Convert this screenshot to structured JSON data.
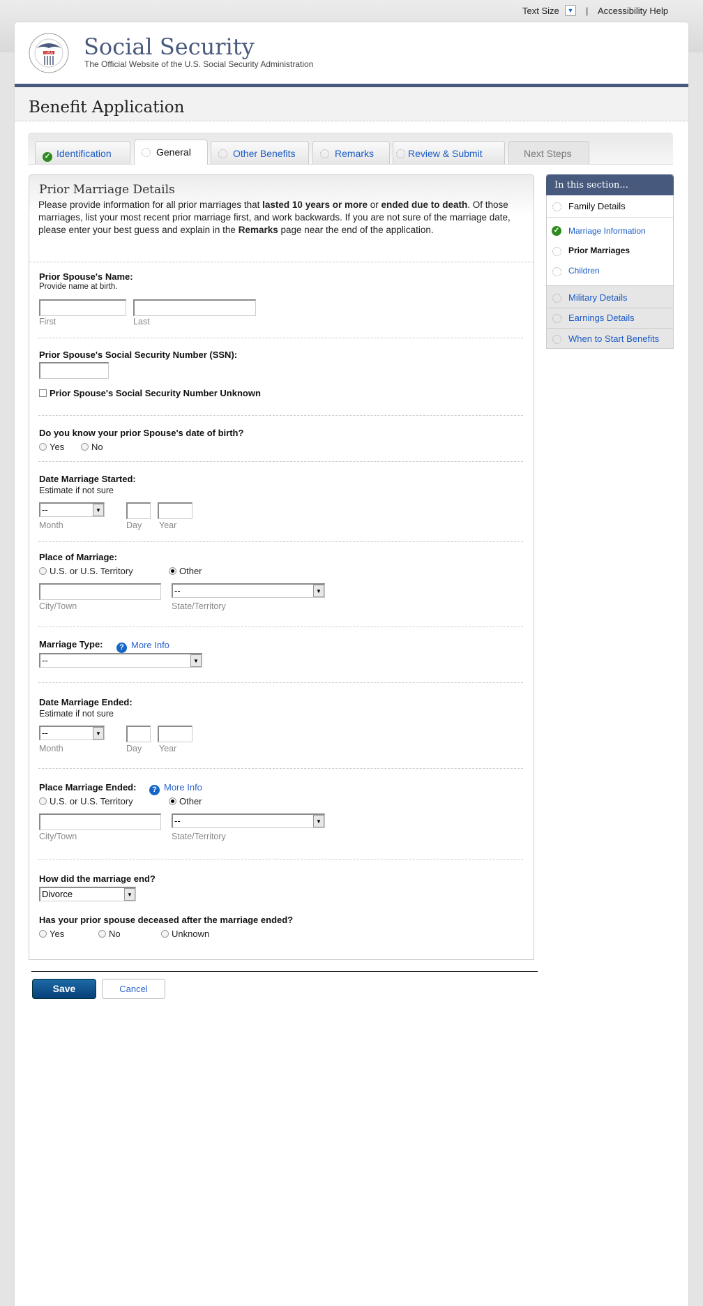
{
  "utility": {
    "text_size": "Text Size",
    "separator": "|",
    "accessibility": "Accessibility Help"
  },
  "header": {
    "title": "Social Security",
    "subtitle": "The Official Website of the U.S. Social Security Administration",
    "logo_text": "SOCIAL SECURITY ADMINISTRATION USA"
  },
  "page_title": "Benefit Application",
  "tabs": [
    {
      "label": "Identification",
      "state": "complete"
    },
    {
      "label": "General",
      "state": "active"
    },
    {
      "label": "Other Benefits",
      "state": "incomplete"
    },
    {
      "label": "Remarks",
      "state": "incomplete"
    },
    {
      "label": "Review & Submit",
      "state": "incomplete"
    },
    {
      "label": "Next Steps",
      "state": "disabled"
    }
  ],
  "panel": {
    "heading": "Prior Marriage Details",
    "intro": {
      "p1": "Please provide information for all prior marriages that ",
      "b1": "lasted 10 years or more",
      "p2": " or ",
      "b2": "ended due to death",
      "p3": ". Of those marriages, list your most recent prior marriage first, and work backwards. If you are not sure of the marriage date, please enter your best guess and explain in the ",
      "b3": "Remarks",
      "p4": " page near the end of the application."
    }
  },
  "form": {
    "name": {
      "label": "Prior Spouse's Name:",
      "sub": "Provide name at birth.",
      "first": "First",
      "last": "Last",
      "first_value": "",
      "last_value": ""
    },
    "ssn": {
      "label": "Prior Spouse's Social Security Number (SSN):",
      "value": "",
      "unknown": "Prior Spouse's Social Security Number Unknown"
    },
    "dob": {
      "label": "Do you know your prior Spouse's date of birth?",
      "yes": "Yes",
      "no": "No"
    },
    "start": {
      "label": "Date Marriage Started:",
      "sub": "Estimate if not sure",
      "month_value": "--",
      "month": "Month",
      "day": "Day",
      "year": "Year"
    },
    "place": {
      "label": "Place of Marriage:",
      "us": "U.S. or U.S. Territory",
      "other": "Other",
      "selected": "Other",
      "city": "City/Town",
      "state": "State/Territory",
      "state_value": "--"
    },
    "type": {
      "label": "Marriage Type:",
      "more_info": "More Info",
      "value": "--"
    },
    "end": {
      "label": "Date Marriage Ended:",
      "sub": "Estimate if not sure",
      "month_value": "--",
      "month": "Month",
      "day": "Day",
      "year": "Year"
    },
    "place_end": {
      "label": "Place Marriage Ended:",
      "more_info": "More Info",
      "us": "U.S. or U.S. Territory",
      "other": "Other",
      "selected": "Other",
      "city": "City/Town",
      "state": "State/Territory",
      "state_value": "--"
    },
    "how": {
      "label": "How did the marriage end?",
      "value": "Divorce"
    },
    "deceased": {
      "label": "Has your prior spouse deceased after the marriage ended?",
      "yes": "Yes",
      "no": "No",
      "unknown": "Unknown"
    }
  },
  "sidebar": {
    "title": "In this section...",
    "items": [
      {
        "label": "Family Details",
        "state": "incomplete"
      },
      {
        "label": "Marriage Information",
        "state": "complete"
      },
      {
        "label": "Prior Marriages",
        "state": "current"
      },
      {
        "label": "Children",
        "state": "incomplete"
      },
      {
        "label": "Military Details",
        "state": "incomplete"
      },
      {
        "label": "Earnings Details",
        "state": "incomplete"
      },
      {
        "label": "When to Start Benefits",
        "state": "incomplete"
      }
    ]
  },
  "buttons": {
    "save": "Save",
    "cancel": "Cancel"
  },
  "colors": {
    "brand": "#475a7e",
    "link": "#1b5bc6",
    "save": "#0b4a85",
    "check": "#2e8b1f"
  }
}
